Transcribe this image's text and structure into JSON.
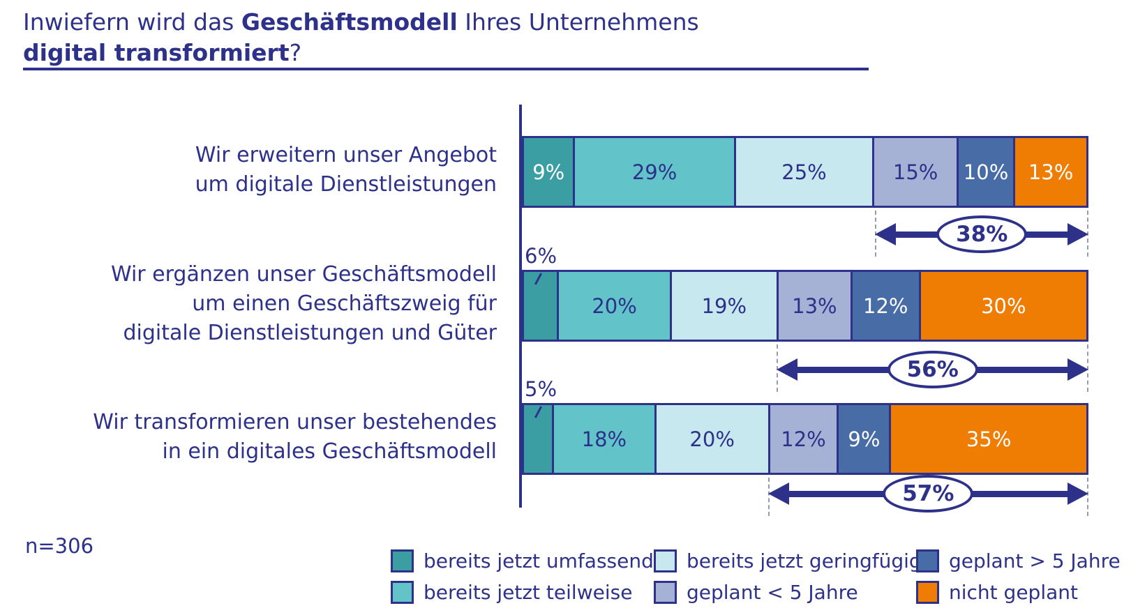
{
  "title": {
    "l1a": "Inwiefern wird das ",
    "l1b": "Geschäftsmodell",
    "l1c": " Ihres Unternehmens",
    "l2a": "digital transformiert",
    "l2b": "?"
  },
  "sample_size_label": "n=306",
  "colors": {
    "navy": "#2d3189",
    "dash": "#949bb8",
    "white": "#ffffff"
  },
  "chart_data": {
    "type": "bar",
    "stacked": true,
    "orientation": "horizontal",
    "unit": "%",
    "value_range": [
      0,
      100
    ],
    "series": [
      "bereits jetzt umfassend",
      "bereits jetzt teilweise",
      "bereits jetzt geringfügig",
      "geplant < 5 Jahre",
      "geplant > 5 Jahre",
      "nicht geplant"
    ],
    "series_colors": [
      "#3b9ea3",
      "#62c3c9",
      "#c7e8ee",
      "#a6b1d6",
      "#486ca6",
      "#ef7d04"
    ],
    "series_text_colors": [
      "#ffffff",
      "#2d3189",
      "#2d3189",
      "#2d3189",
      "#ffffff",
      "#ffffff"
    ],
    "rows": [
      {
        "label_lines": [
          "Wir erweitern unser Angebot",
          "um digitale Dienstleistungen"
        ],
        "values": [
          9,
          29,
          25,
          15,
          10,
          13
        ],
        "value_labels": [
          "9%",
          "29%",
          "25%",
          "15%",
          "10%",
          "13%"
        ],
        "first_label_outside": false,
        "arrow": {
          "label": "38%",
          "start_series_index": 3
        }
      },
      {
        "label_lines": [
          "Wir ergänzen unser Geschäftsmodell",
          "um einen Geschäftszweig für",
          "digitale Dienstleistungen und Güter"
        ],
        "values": [
          6,
          20,
          19,
          13,
          12,
          30
        ],
        "value_labels": [
          "6%",
          "20%",
          "19%",
          "13%",
          "12%",
          "30%"
        ],
        "first_label_outside": true,
        "arrow": {
          "label": "56%",
          "start_series_index": 3
        }
      },
      {
        "label_lines": [
          "Wir transformieren unser bestehendes",
          "in ein digitales Geschäftsmodell"
        ],
        "values": [
          5,
          18,
          20,
          12,
          9,
          35
        ],
        "value_labels": [
          "5%",
          "18%",
          "20%",
          "12%",
          "9%",
          "35%"
        ],
        "first_label_outside": true,
        "arrow": {
          "label": "57%",
          "start_series_index": 3
        }
      }
    ],
    "legend_rows": [
      [
        0,
        2,
        4
      ],
      [
        1,
        3,
        5
      ]
    ],
    "legend_position": "bottom"
  }
}
